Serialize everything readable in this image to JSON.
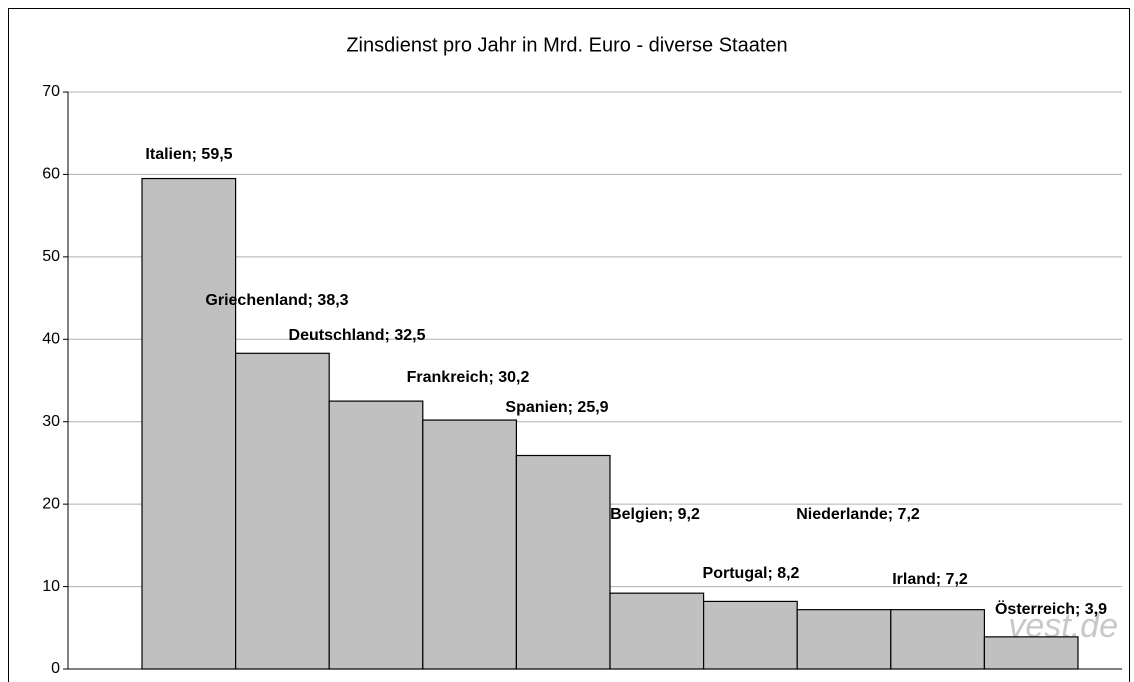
{
  "chart_data": {
    "type": "bar",
    "title": "Zinsdienst pro Jahr in Mrd. Euro - diverse Staaten",
    "values": [
      59.5,
      38.3,
      32.5,
      30.2,
      25.9,
      9.2,
      8.2,
      7.2,
      7.2,
      3.9
    ],
    "value_labels": [
      "Italien; 59,5",
      "Griechenland; 38,3",
      "Deutschland; 32,5",
      "Frankreich; 30,2",
      "Spanien; 25,9",
      "Belgien; 9,2",
      "Portugal; 8,2",
      "Niederlande; 7,2",
      "Irland; 7,2",
      "Österreich; 3,9"
    ],
    "color": "#c0c0c0",
    "ylim": [
      0,
      70
    ],
    "yticks": [
      0,
      10,
      20,
      30,
      40,
      50,
      60,
      70
    ],
    "grid": true,
    "watermark": "vest.de"
  }
}
